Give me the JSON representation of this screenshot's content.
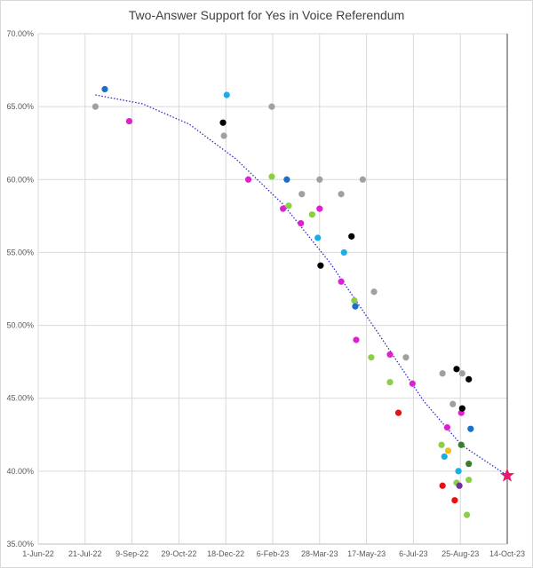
{
  "chart_data": {
    "type": "scatter",
    "title": "Two-Answer Support for Yes in Voice Referendum",
    "xlabel": "",
    "ylabel": "",
    "x_ticks": [
      "1-Jun-22",
      "21-Jul-22",
      "9-Sep-22",
      "29-Oct-22",
      "18-Dec-22",
      "6-Feb-23",
      "28-Mar-23",
      "17-May-23",
      "6-Jul-23",
      "25-Aug-23",
      "14-Oct-23"
    ],
    "xlim": [
      "2022-06-01",
      "2023-10-14"
    ],
    "y_ticks": [
      "35.00%",
      "40.00%",
      "45.00%",
      "50.00%",
      "55.00%",
      "60.00%",
      "65.00%",
      "70.00%"
    ],
    "ylim": [
      35,
      70
    ],
    "grid": true,
    "legend": "none",
    "trendline": {
      "style": "dotted",
      "color": "#2c2cc8",
      "points": [
        {
          "x": "2022-08-01",
          "y": 65.8
        },
        {
          "x": "2022-09-20",
          "y": 65.2
        },
        {
          "x": "2022-11-09",
          "y": 63.8
        },
        {
          "x": "2022-12-29",
          "y": 61.4
        },
        {
          "x": "2023-02-17",
          "y": 58.3
        },
        {
          "x": "2023-04-08",
          "y": 54.3
        },
        {
          "x": "2023-05-28",
          "y": 49.6
        },
        {
          "x": "2023-07-17",
          "y": 44.8
        },
        {
          "x": "2023-08-26",
          "y": 41.8
        },
        {
          "x": "2023-10-14",
          "y": 39.7
        }
      ]
    },
    "result_marker": {
      "x": "2023-10-14",
      "y": 39.7,
      "color": "#e8186d"
    },
    "points": [
      {
        "x": "2022-08-01",
        "y": 65.0,
        "color": "#a0a0a0"
      },
      {
        "x": "2022-08-11",
        "y": 66.2,
        "color": "#1a6fc9"
      },
      {
        "x": "2022-09-06",
        "y": 64.0,
        "color": "#e020d0"
      },
      {
        "x": "2022-12-15",
        "y": 63.9,
        "color": "#000000"
      },
      {
        "x": "2022-12-16",
        "y": 63.0,
        "color": "#a0a0a0"
      },
      {
        "x": "2022-12-19",
        "y": 65.8,
        "color": "#19aee8"
      },
      {
        "x": "2023-01-11",
        "y": 60.0,
        "color": "#e020d0"
      },
      {
        "x": "2023-02-05",
        "y": 60.2,
        "color": "#8ccf45"
      },
      {
        "x": "2023-02-05",
        "y": 65.0,
        "color": "#a0a0a0"
      },
      {
        "x": "2023-02-17",
        "y": 58.0,
        "color": "#e020d0"
      },
      {
        "x": "2023-02-21",
        "y": 60.0,
        "color": "#1a6fc9"
      },
      {
        "x": "2023-02-23",
        "y": 58.2,
        "color": "#8ccf45"
      },
      {
        "x": "2023-03-08",
        "y": 57.0,
        "color": "#e020d0"
      },
      {
        "x": "2023-03-09",
        "y": 59.0,
        "color": "#a0a0a0"
      },
      {
        "x": "2023-03-20",
        "y": 57.6,
        "color": "#8ccf45"
      },
      {
        "x": "2023-03-26",
        "y": 56.0,
        "color": "#19aee8"
      },
      {
        "x": "2023-03-28",
        "y": 58.0,
        "color": "#e020d0"
      },
      {
        "x": "2023-03-28",
        "y": 60.0,
        "color": "#a0a0a0"
      },
      {
        "x": "2023-03-29",
        "y": 54.1,
        "color": "#000000"
      },
      {
        "x": "2023-04-20",
        "y": 59.0,
        "color": "#a0a0a0"
      },
      {
        "x": "2023-04-20",
        "y": 53.0,
        "color": "#e020d0"
      },
      {
        "x": "2023-04-23",
        "y": 55.0,
        "color": "#19aee8"
      },
      {
        "x": "2023-05-01",
        "y": 56.1,
        "color": "#000000"
      },
      {
        "x": "2023-05-04",
        "y": 51.7,
        "color": "#8ccf45"
      },
      {
        "x": "2023-05-05",
        "y": 51.3,
        "color": "#1a6fc9"
      },
      {
        "x": "2023-05-06",
        "y": 49.0,
        "color": "#e020d0"
      },
      {
        "x": "2023-05-13",
        "y": 60.0,
        "color": "#a0a0a0"
      },
      {
        "x": "2023-05-22",
        "y": 47.8,
        "color": "#8ccf45"
      },
      {
        "x": "2023-05-25",
        "y": 52.3,
        "color": "#a0a0a0"
      },
      {
        "x": "2023-06-11",
        "y": 48.0,
        "color": "#e020d0"
      },
      {
        "x": "2023-06-11",
        "y": 46.1,
        "color": "#8ccf45"
      },
      {
        "x": "2023-06-20",
        "y": 44.0,
        "color": "#e81010"
      },
      {
        "x": "2023-06-28",
        "y": 47.8,
        "color": "#a0a0a0"
      },
      {
        "x": "2023-07-05",
        "y": 46.0,
        "color": "#e020d0"
      },
      {
        "x": "2023-08-06",
        "y": 46.7,
        "color": "#a0a0a0"
      },
      {
        "x": "2023-08-05",
        "y": 41.8,
        "color": "#8ccf45"
      },
      {
        "x": "2023-08-06",
        "y": 39.0,
        "color": "#e81010"
      },
      {
        "x": "2023-08-08",
        "y": 41.0,
        "color": "#19aee8"
      },
      {
        "x": "2023-08-11",
        "y": 43.0,
        "color": "#e020d0"
      },
      {
        "x": "2023-08-12",
        "y": 41.4,
        "color": "#f2c010"
      },
      {
        "x": "2023-08-17",
        "y": 44.6,
        "color": "#a0a0a0"
      },
      {
        "x": "2023-08-19",
        "y": 38.0,
        "color": "#e81010"
      },
      {
        "x": "2023-08-21",
        "y": 39.2,
        "color": "#8ccf45"
      },
      {
        "x": "2023-08-21",
        "y": 47.0,
        "color": "#000000"
      },
      {
        "x": "2023-08-23",
        "y": 40.0,
        "color": "#19aee8"
      },
      {
        "x": "2023-08-24",
        "y": 39.0,
        "color": "#7030a0"
      },
      {
        "x": "2023-08-26",
        "y": 41.8,
        "color": "#3a7d2a"
      },
      {
        "x": "2023-08-26",
        "y": 44.0,
        "color": "#e020d0"
      },
      {
        "x": "2023-08-27",
        "y": 44.3,
        "color": "#000000"
      },
      {
        "x": "2023-08-27",
        "y": 46.7,
        "color": "#a0a0a0"
      },
      {
        "x": "2023-09-01",
        "y": 37.0,
        "color": "#8ccf45"
      },
      {
        "x": "2023-09-03",
        "y": 40.5,
        "color": "#3a7d2a"
      },
      {
        "x": "2023-09-03",
        "y": 39.4,
        "color": "#8ccf45"
      },
      {
        "x": "2023-09-03",
        "y": 46.3,
        "color": "#000000"
      },
      {
        "x": "2023-09-05",
        "y": 42.9,
        "color": "#1a6fc9"
      }
    ]
  }
}
